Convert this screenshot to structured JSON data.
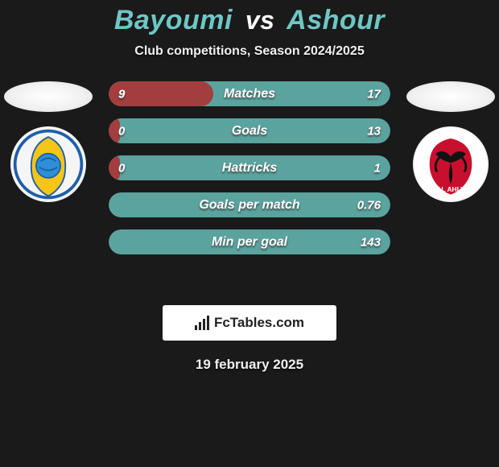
{
  "background_color": "#1a1a1a",
  "title": {
    "player1": "Bayoumi",
    "vs": "vs",
    "player2": "Ashour",
    "player_color": "#6fc6c6",
    "vs_color": "#ffffff",
    "fontsize": 34
  },
  "subtitle": "Club competitions, Season 2024/2025",
  "subtitle_fontsize": 16,
  "left_club": {
    "name": "ismaily-badge",
    "ring_color": "#1e5fa8",
    "inner_color": "#f5c518",
    "ball_color": "#2e8fd6"
  },
  "right_club": {
    "name": "al-ahly-badge",
    "bg_color": "#ffffff",
    "shield_color": "#c8102e",
    "eagle_color": "#121212"
  },
  "bars": {
    "track_color": "#5aa39e",
    "fill_color": "#a33e3e",
    "height": 31,
    "radius": 16,
    "label_fontsize": 16,
    "value_fontsize": 15,
    "items": [
      {
        "label": "Matches",
        "left": "9",
        "right": "17",
        "right_num": 17,
        "fill_pct": 37
      },
      {
        "label": "Goals",
        "left": "0",
        "right": "13",
        "right_num": 13,
        "fill_pct": 4
      },
      {
        "label": "Hattricks",
        "left": "0",
        "right": "1",
        "right_num": 1,
        "fill_pct": 4
      },
      {
        "label": "Goals per match",
        "left": "",
        "right": "0.76",
        "right_num": 0.76,
        "fill_pct": 0
      },
      {
        "label": "Min per goal",
        "left": "",
        "right": "143",
        "right_num": 143,
        "fill_pct": 0
      }
    ]
  },
  "branding": {
    "text": "FcTables.com",
    "bg_color": "#ffffff",
    "text_color": "#222222",
    "fontsize": 17
  },
  "date": "19 february 2025",
  "date_fontsize": 17
}
